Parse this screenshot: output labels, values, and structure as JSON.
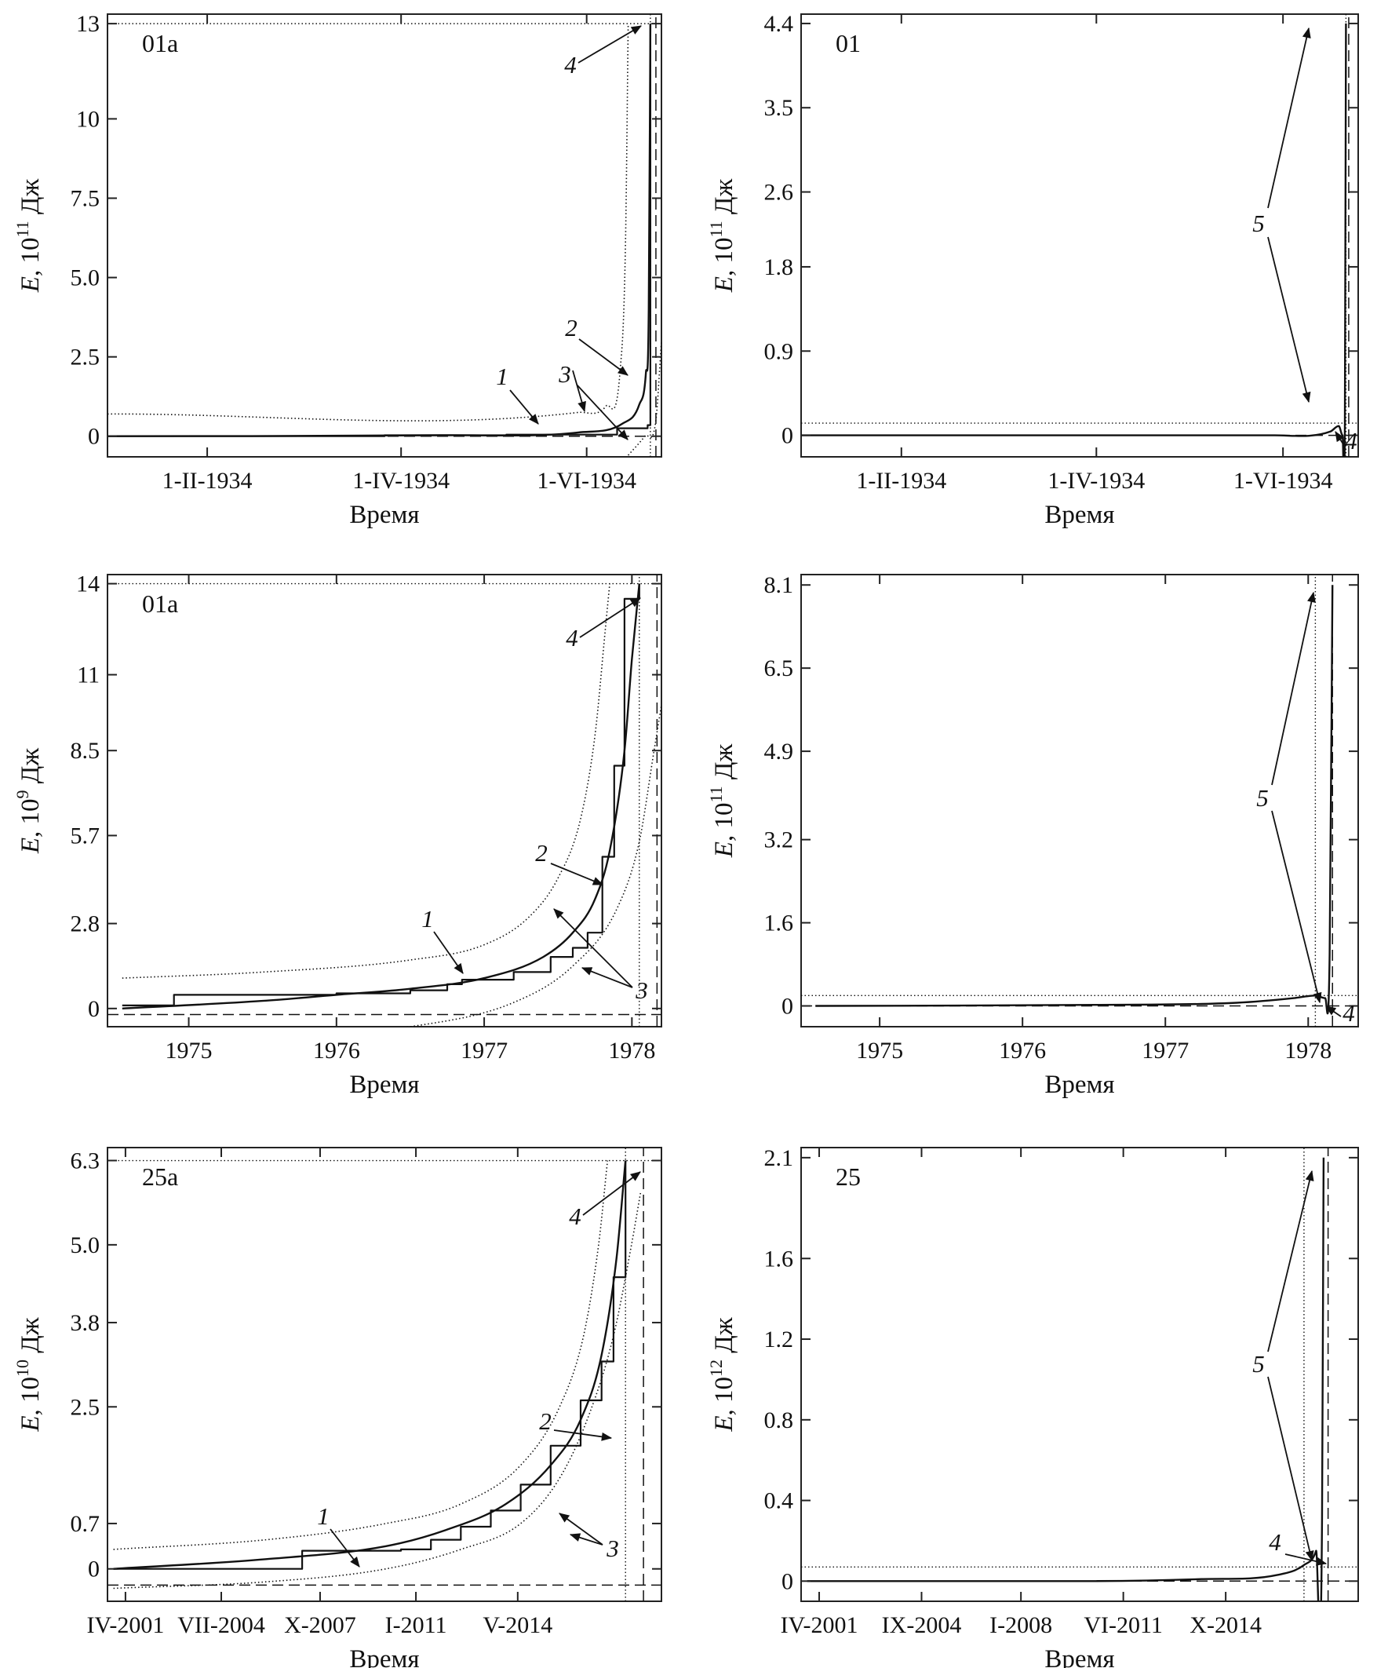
{
  "y_unit": "Дж",
  "y_symbol": "E",
  "chart_data": [
    {
      "type": "line",
      "panel_label": "01a",
      "ylabel_exp": "11",
      "xlabel": "Время",
      "yticks": [
        "0",
        "2.5",
        "5.0",
        "7.5",
        "10",
        "13"
      ],
      "xticks": [
        "1-II-1934",
        "1-IV-1934",
        "1-VI-1934"
      ],
      "callouts": [
        "1",
        "2",
        "3",
        "4"
      ],
      "series": [
        {
          "kind": "step",
          "values": [
            [
              0.0,
              0.0
            ],
            [
              0.5,
              0.03
            ],
            [
              0.72,
              0.05
            ],
            [
              0.92,
              0.25
            ],
            [
              0.975,
              0.35
            ],
            [
              0.98,
              13.0
            ]
          ]
        },
        {
          "kind": "smooth",
          "values": [
            [
              0.0,
              0.0
            ],
            [
              0.6,
              0.03
            ],
            [
              0.85,
              0.12
            ],
            [
              0.93,
              0.4
            ],
            [
              0.96,
              1.0
            ],
            [
              0.972,
              2.0
            ],
            [
              0.977,
              4.0
            ],
            [
              0.98,
              13.0
            ]
          ]
        },
        {
          "kind": "dotted",
          "values": [
            [
              0.0,
              0.7
            ],
            [
              0.85,
              0.75
            ],
            [
              0.9,
              0.95
            ],
            [
              0.925,
              2.0
            ],
            [
              0.935,
              6.0
            ],
            [
              0.94,
              13.0
            ]
          ]
        },
        {
          "kind": "dotted",
          "values": [
            [
              0.94,
              -0.6
            ],
            [
              0.97,
              0.0
            ],
            [
              0.99,
              0.5
            ],
            [
              1.0,
              3.0
            ]
          ]
        },
        {
          "kind": "ref-dotted-h",
          "values": [
            [
              0.0,
              13.0
            ],
            [
              1.0,
              13.0
            ]
          ]
        },
        {
          "kind": "ref-dashed-h",
          "values": [
            [
              0.0,
              0.0
            ],
            [
              1.0,
              0.0
            ]
          ]
        },
        {
          "kind": "ref-dotted-v",
          "values": [
            [
              0.98,
              -0.65
            ],
            [
              0.98,
              13.3
            ]
          ]
        },
        {
          "kind": "ref-dashed-v",
          "values": [
            [
              0.99,
              -0.65
            ],
            [
              0.99,
              13.3
            ]
          ]
        }
      ]
    },
    {
      "type": "line",
      "panel_label": "01",
      "ylabel_exp": "11",
      "xlabel": "Время",
      "yticks": [
        "0",
        "0.9",
        "1.8",
        "2.6",
        "3.5",
        "4.4"
      ],
      "xticks": [
        "1-II-1934",
        "1-IV-1934",
        "1-VI-1934"
      ],
      "callouts": [
        "5",
        "4"
      ],
      "series": [
        {
          "kind": "smooth",
          "values": [
            [
              0.0,
              0.0
            ],
            [
              0.85,
              0.0
            ],
            [
              0.95,
              0.04
            ],
            [
              0.965,
              0.1
            ],
            [
              0.972,
              0.0
            ],
            [
              0.976,
              0.1
            ],
            [
              0.978,
              4.4
            ]
          ]
        },
        {
          "kind": "ref-dotted-h",
          "values": [
            [
              0.0,
              0.13
            ],
            [
              1.0,
              0.13
            ]
          ]
        },
        {
          "kind": "ref-dashed-h",
          "values": [
            [
              0.0,
              0.0
            ],
            [
              1.0,
              0.0
            ]
          ]
        },
        {
          "kind": "ref-dotted-v",
          "values": [
            [
              0.978,
              -0.23
            ],
            [
              0.978,
              4.5
            ]
          ]
        },
        {
          "kind": "ref-dashed-v",
          "values": [
            [
              0.983,
              -0.23
            ],
            [
              0.983,
              4.5
            ]
          ]
        }
      ]
    },
    {
      "type": "line",
      "panel_label": "01a",
      "ylabel_exp": "9",
      "xlabel": "Время",
      "yticks": [
        "0",
        "2.8",
        "5.7",
        "8.5",
        "11",
        "14"
      ],
      "xticks": [
        "1975",
        "1976",
        "1977",
        "1978"
      ],
      "callouts": [
        "1",
        "2",
        "3",
        "4"
      ],
      "series": [
        {
          "kind": "step",
          "values": [
            [
              1974.55,
              0.1
            ],
            [
              1974.9,
              0.1
            ],
            [
              1974.9,
              0.45
            ],
            [
              1976.0,
              0.5
            ],
            [
              1976.5,
              0.6
            ],
            [
              1976.75,
              0.8
            ],
            [
              1976.85,
              0.95
            ],
            [
              1977.2,
              1.2
            ],
            [
              1977.45,
              1.7
            ],
            [
              1977.6,
              2.0
            ],
            [
              1977.7,
              2.5
            ],
            [
              1977.8,
              2.8
            ],
            [
              1977.8,
              5.0
            ],
            [
              1977.88,
              8.0
            ],
            [
              1977.95,
              13.5
            ],
            [
              1978.05,
              14.0
            ]
          ]
        },
        {
          "kind": "smooth",
          "values": [
            [
              1974.55,
              0.0
            ],
            [
              1975.5,
              0.25
            ],
            [
              1976.0,
              0.45
            ],
            [
              1976.5,
              0.65
            ],
            [
              1977.0,
              1.0
            ],
            [
              1977.4,
              1.7
            ],
            [
              1977.6,
              2.5
            ],
            [
              1977.75,
              3.6
            ],
            [
              1977.85,
              5.2
            ],
            [
              1977.95,
              8.5
            ],
            [
              1978.0,
              11.5
            ],
            [
              1978.05,
              14.0
            ]
          ]
        },
        {
          "kind": "dotted",
          "values": [
            [
              1974.55,
              1.0
            ],
            [
              1975.5,
              1.2
            ],
            [
              1976.5,
              1.6
            ],
            [
              1977.0,
              2.1
            ],
            [
              1977.3,
              3.0
            ],
            [
              1977.5,
              4.3
            ],
            [
              1977.65,
              6.2
            ],
            [
              1977.75,
              9.0
            ],
            [
              1977.82,
              12.5
            ],
            [
              1977.85,
              14.0
            ]
          ]
        },
        {
          "kind": "dotted",
          "values": [
            [
              1975.5,
              -1.0
            ],
            [
              1976.5,
              -0.6
            ],
            [
              1977.2,
              0.2
            ],
            [
              1977.6,
              1.4
            ],
            [
              1977.9,
              3.3
            ],
            [
              1978.05,
              5.5
            ],
            [
              1978.15,
              8.5
            ],
            [
              1978.2,
              10.0
            ]
          ]
        },
        {
          "kind": "ref-dotted-h",
          "values": [
            [
              1974.45,
              14.0
            ],
            [
              1978.2,
              14.0
            ]
          ]
        },
        {
          "kind": "ref-dashed-h",
          "values": [
            [
              1974.45,
              -0.2
            ],
            [
              1978.2,
              -0.2
            ]
          ]
        },
        {
          "kind": "ref-dotted-v",
          "values": [
            [
              1978.05,
              -0.6
            ],
            [
              1978.05,
              14.3
            ]
          ]
        },
        {
          "kind": "ref-dashed-v",
          "values": [
            [
              1978.17,
              -0.6
            ],
            [
              1978.17,
              14.3
            ]
          ]
        }
      ]
    },
    {
      "type": "line",
      "panel_label": "",
      "ylabel_exp": "11",
      "xlabel": "Время",
      "yticks": [
        "0",
        "1.6",
        "3.2",
        "4.9",
        "6.5",
        "8.1"
      ],
      "xticks": [
        "1975",
        "1976",
        "1977",
        "1978"
      ],
      "callouts": [
        "5",
        "4"
      ],
      "series": [
        {
          "kind": "smooth",
          "values": [
            [
              1974.55,
              0.0
            ],
            [
              1976.5,
              0.02
            ],
            [
              1977.5,
              0.06
            ],
            [
              1977.9,
              0.15
            ],
            [
              1978.05,
              0.2
            ],
            [
              1978.12,
              0.15
            ],
            [
              1978.15,
              1.0
            ],
            [
              1978.17,
              8.1
            ]
          ]
        },
        {
          "kind": "ref-dotted-h",
          "values": [
            [
              1974.45,
              0.2
            ],
            [
              1978.35,
              0.2
            ]
          ]
        },
        {
          "kind": "ref-dashed-h",
          "values": [
            [
              1974.45,
              0.0
            ],
            [
              1978.35,
              0.0
            ]
          ]
        },
        {
          "kind": "ref-dotted-v",
          "values": [
            [
              1978.05,
              -0.4
            ],
            [
              1978.05,
              8.3
            ]
          ]
        },
        {
          "kind": "ref-dashed-v",
          "values": [
            [
              1978.17,
              -0.4
            ],
            [
              1978.17,
              8.3
            ]
          ]
        }
      ]
    },
    {
      "type": "line",
      "panel_label": "25a",
      "ylabel_exp": "10",
      "xlabel": "Время",
      "yticks": [
        "0",
        "0.7",
        "2.5",
        "3.8",
        "5.0",
        "6.3"
      ],
      "xticks": [
        "IV-2001",
        "VII-2004",
        "X-2007",
        "I-2011",
        "V-2014"
      ],
      "callouts": [
        "1",
        "2",
        "3",
        "4"
      ],
      "series": [
        {
          "kind": "step",
          "values": [
            [
              2000.9,
              0.0
            ],
            [
              2007.2,
              0.0
            ],
            [
              2007.2,
              0.28
            ],
            [
              2010.5,
              0.3
            ],
            [
              2011.5,
              0.45
            ],
            [
              2012.5,
              0.65
            ],
            [
              2013.5,
              0.9
            ],
            [
              2014.5,
              1.3
            ],
            [
              2015.5,
              1.9
            ],
            [
              2016.5,
              2.6
            ],
            [
              2017.2,
              3.2
            ],
            [
              2017.6,
              4.5
            ],
            [
              2018.0,
              6.3
            ]
          ]
        },
        {
          "kind": "smooth",
          "values": [
            [
              2000.9,
              0.0
            ],
            [
              2006.0,
              0.15
            ],
            [
              2010.0,
              0.35
            ],
            [
              2012.0,
              0.6
            ],
            [
              2014.0,
              1.0
            ],
            [
              2015.5,
              1.6
            ],
            [
              2016.5,
              2.3
            ],
            [
              2017.2,
              3.3
            ],
            [
              2017.7,
              4.8
            ],
            [
              2018.0,
              6.3
            ]
          ]
        },
        {
          "kind": "dotted",
          "values": [
            [
              2000.9,
              0.3
            ],
            [
              2006.0,
              0.45
            ],
            [
              2010.0,
              0.7
            ],
            [
              2012.5,
              1.0
            ],
            [
              2014.5,
              1.6
            ],
            [
              2015.8,
              2.5
            ],
            [
              2016.6,
              3.6
            ],
            [
              2017.1,
              5.0
            ],
            [
              2017.4,
              6.3
            ]
          ]
        },
        {
          "kind": "dotted",
          "values": [
            [
              2000.9,
              -0.3
            ],
            [
              2006.0,
              -0.2
            ],
            [
              2010.0,
              0.0
            ],
            [
              2012.5,
              0.3
            ],
            [
              2014.5,
              0.7
            ],
            [
              2015.8,
              1.4
            ],
            [
              2016.8,
              2.4
            ],
            [
              2017.6,
              3.6
            ],
            [
              2018.2,
              5.0
            ],
            [
              2018.5,
              5.8
            ]
          ]
        },
        {
          "kind": "ref-dotted-h",
          "values": [
            [
              2000.7,
              6.3
            ],
            [
              2019.2,
              6.3
            ]
          ]
        },
        {
          "kind": "ref-dashed-h",
          "values": [
            [
              2000.7,
              -0.25
            ],
            [
              2019.2,
              -0.25
            ]
          ]
        },
        {
          "kind": "ref-dotted-v",
          "values": [
            [
              2018.0,
              -0.5
            ],
            [
              2018.0,
              6.5
            ]
          ]
        },
        {
          "kind": "ref-dashed-v",
          "values": [
            [
              2018.6,
              -0.5
            ],
            [
              2018.6,
              6.5
            ]
          ]
        }
      ]
    },
    {
      "type": "line",
      "panel_label": "25",
      "ylabel_exp": "12",
      "xlabel": "Время",
      "yticks": [
        "0",
        "0.4",
        "0.8",
        "1.2",
        "1.6",
        "2.1"
      ],
      "xticks": [
        "IV-2001",
        "IX-2004",
        "I-2008",
        "VI-2011",
        "X-2014"
      ],
      "callouts": [
        "5",
        "4"
      ],
      "series": [
        {
          "kind": "smooth",
          "values": [
            [
              2000.9,
              0.0
            ],
            [
              2010.0,
              0.0
            ],
            [
              2014.0,
              0.01
            ],
            [
              2016.5,
              0.03
            ],
            [
              2017.4,
              0.08
            ],
            [
              2017.8,
              0.15
            ],
            [
              2018.0,
              0.3
            ],
            [
              2018.05,
              2.1
            ]
          ]
        },
        {
          "kind": "ref-dotted-h",
          "values": [
            [
              2000.7,
              0.07
            ],
            [
              2019.2,
              0.07
            ]
          ]
        },
        {
          "kind": "ref-dashed-h",
          "values": [
            [
              2000.7,
              0.0
            ],
            [
              2019.2,
              0.0
            ]
          ]
        },
        {
          "kind": "ref-dotted-v",
          "values": [
            [
              2017.4,
              -0.1
            ],
            [
              2017.4,
              2.15
            ]
          ]
        },
        {
          "kind": "ref-dashed-v",
          "values": [
            [
              2018.2,
              -0.1
            ],
            [
              2018.2,
              2.15
            ]
          ]
        }
      ]
    }
  ]
}
